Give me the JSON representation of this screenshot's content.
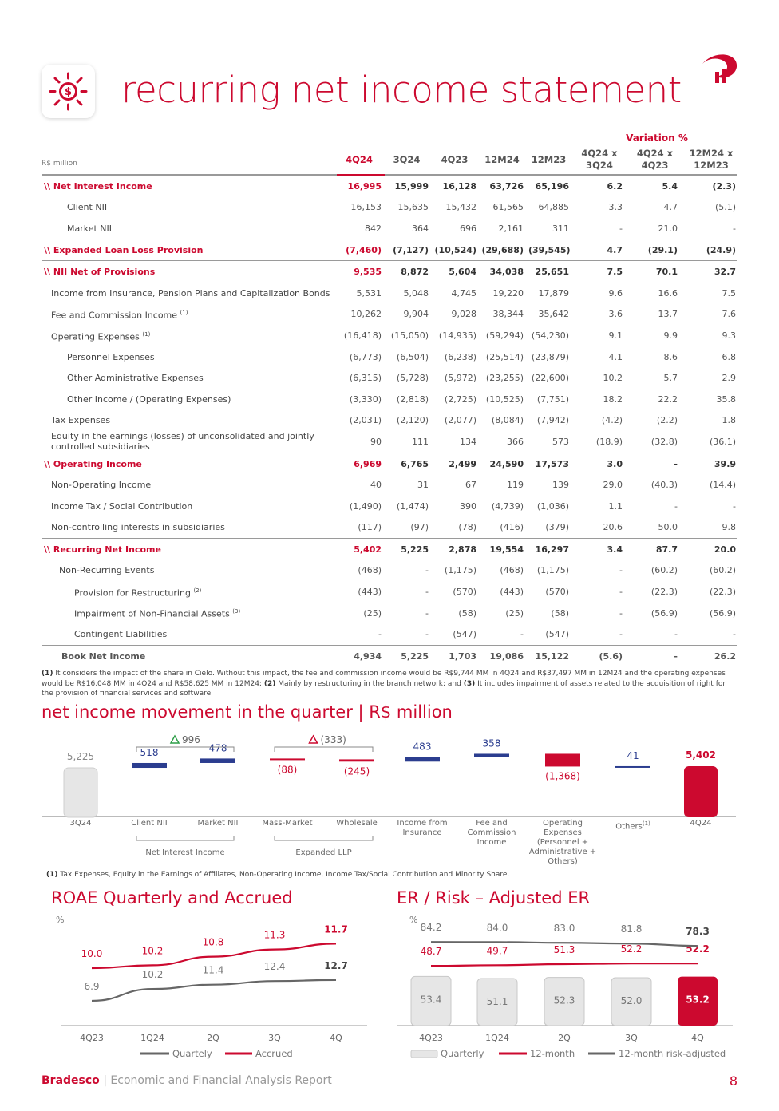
{
  "header": {
    "title": "recurring net income statement"
  },
  "table": {
    "unit": "R$ million",
    "variation_label": "Variation %",
    "columns": [
      "4Q24",
      "3Q24",
      "4Q23",
      "12M24",
      "12M23",
      "4Q24 x\n3Q24",
      "4Q24 x\n4Q23",
      "12M24 x\n12M23"
    ],
    "rows": [
      {
        "label": "\\\\ Net Interest Income",
        "cells": [
          "16,995",
          "15,999",
          "16,128",
          "63,726",
          "65,196",
          "6.2",
          "5.4",
          "(2.3)"
        ]
      },
      {
        "label": "Client NII",
        "cells": [
          "16,153",
          "15,635",
          "15,432",
          "61,565",
          "64,885",
          "3.3",
          "4.7",
          "(5.1)"
        ]
      },
      {
        "label": "Market NII",
        "cells": [
          "842",
          "364",
          "696",
          "2,161",
          "311",
          "-",
          "21.0",
          "-"
        ]
      },
      {
        "label": "\\\\ Expanded Loan Loss Provision",
        "cells": [
          "(7,460)",
          "(7,127)",
          "(10,524)",
          "(29,688)",
          "(39,545)",
          "4.7",
          "(29.1)",
          "(24.9)"
        ]
      },
      {
        "label": "\\\\ NII Net of Provisions",
        "cells": [
          "9,535",
          "8,872",
          "5,604",
          "34,038",
          "25,651",
          "7.5",
          "70.1",
          "32.7"
        ]
      },
      {
        "label": "Income from Insurance, Pension Plans and Capitalization Bonds",
        "cells": [
          "5,531",
          "5,048",
          "4,745",
          "19,220",
          "17,879",
          "9.6",
          "16.6",
          "7.5"
        ]
      },
      {
        "label": "Fee and Commission Income",
        "note": "(1)",
        "cells": [
          "10,262",
          "9,904",
          "9,028",
          "38,344",
          "35,642",
          "3.6",
          "13.7",
          "7.6"
        ]
      },
      {
        "label": "Operating Expenses",
        "note": "(1)",
        "cells": [
          "(16,418)",
          "(15,050)",
          "(14,935)",
          "(59,294)",
          "(54,230)",
          "9.1",
          "9.9",
          "9.3"
        ]
      },
      {
        "label": "Personnel Expenses",
        "cells": [
          "(6,773)",
          "(6,504)",
          "(6,238)",
          "(25,514)",
          "(23,879)",
          "4.1",
          "8.6",
          "6.8"
        ]
      },
      {
        "label": "Other Administrative Expenses",
        "cells": [
          "(6,315)",
          "(5,728)",
          "(5,972)",
          "(23,255)",
          "(22,600)",
          "10.2",
          "5.7",
          "2.9"
        ]
      },
      {
        "label": "Other Income / (Operating Expenses)",
        "cells": [
          "(3,330)",
          "(2,818)",
          "(2,725)",
          "(10,525)",
          "(7,751)",
          "18.2",
          "22.2",
          "35.8"
        ]
      },
      {
        "label": "Tax Expenses",
        "cells": [
          "(2,031)",
          "(2,120)",
          "(2,077)",
          "(8,084)",
          "(7,942)",
          "(4.2)",
          "(2.2)",
          "1.8"
        ]
      },
      {
        "label": "Equity in the earnings (losses) of unconsolidated and jointly controlled subsidiaries",
        "cells": [
          "90",
          "111",
          "134",
          "366",
          "573",
          "(18.9)",
          "(32.8)",
          "(36.1)"
        ]
      },
      {
        "label": "\\\\ Operating Income",
        "cells": [
          "6,969",
          "6,765",
          "2,499",
          "24,590",
          "17,573",
          "3.0",
          "-",
          "39.9"
        ]
      },
      {
        "label": "Non-Operating Income",
        "cells": [
          "40",
          "31",
          "67",
          "119",
          "139",
          "29.0",
          "(40.3)",
          "(14.4)"
        ]
      },
      {
        "label": "Income Tax / Social Contribution",
        "cells": [
          "(1,490)",
          "(1,474)",
          "390",
          "(4,739)",
          "(1,036)",
          "1.1",
          "-",
          "-"
        ]
      },
      {
        "label": "Non-controlling interests in subsidiaries",
        "cells": [
          "(117)",
          "(97)",
          "(78)",
          "(416)",
          "(379)",
          "20.6",
          "50.0",
          "9.8"
        ]
      },
      {
        "label": "\\\\ Recurring Net Income",
        "cells": [
          "5,402",
          "5,225",
          "2,878",
          "19,554",
          "16,297",
          "3.4",
          "87.7",
          "20.0"
        ]
      },
      {
        "label": "Non-Recurring Events",
        "cells": [
          "(468)",
          "-",
          "(1,175)",
          "(468)",
          "(1,175)",
          "-",
          "(60.2)",
          "(60.2)"
        ]
      },
      {
        "label": "Provision for Restructuring",
        "note": "(2)",
        "cells": [
          "(443)",
          "-",
          "(570)",
          "(443)",
          "(570)",
          "-",
          "(22.3)",
          "(22.3)"
        ]
      },
      {
        "label": "Impairment of Non-Financial Assets",
        "note": "(3)",
        "cells": [
          "(25)",
          "-",
          "(58)",
          "(25)",
          "(58)",
          "-",
          "(56.9)",
          "(56.9)"
        ]
      },
      {
        "label": "Contingent Liabilities",
        "cells": [
          "-",
          "-",
          "(547)",
          "-",
          "(547)",
          "-",
          "-",
          "-"
        ]
      },
      {
        "label": "Book Net Income",
        "cells": [
          "4,934",
          "5,225",
          "1,703",
          "19,086",
          "15,122",
          "(5.6)",
          "-",
          "26.2"
        ]
      }
    ]
  },
  "table_notes": [
    {
      "mark": "(1)",
      "text": "It considers the impact of the share in Cielo. Without this impact, the fee and commission income would be R$9,744 MM in 4Q24 and R$37,497 MM in 12M24 and the operating expenses would be R$16,048 MM in 4Q24 and R$58,625 MM in 12M24;"
    },
    {
      "mark": "(2)",
      "text": "Mainly by restructuring in the branch network; and"
    },
    {
      "mark": "(3)",
      "text": "It includes impairment of assets related to the acquisition of right for the provision of financial services and software."
    }
  ],
  "chart_data": [
    {
      "type": "waterfall",
      "title": "net income movement in the quarter | R$ million",
      "categories": [
        "3Q24",
        "Client NII",
        "Market NII",
        "Mass-Market",
        "Wholesale",
        "Income from Insurance",
        "Fee and Commission Income",
        "Operating Expenses (Personnel + Administrative + Others)",
        "Others",
        "4Q24"
      ],
      "category_notes": [
        null,
        null,
        null,
        null,
        null,
        null,
        null,
        null,
        "(1)",
        null
      ],
      "values": [
        5225,
        518,
        478,
        -88,
        -245,
        483,
        358,
        -1368,
        41,
        5402
      ],
      "value_labels": [
        "5,225",
        "518",
        "478",
        "(88)",
        "(245)",
        "483",
        "358",
        "(1,368)",
        "41",
        "5,402"
      ],
      "groups": [
        {
          "label": "Net Interest Income",
          "delta": 996,
          "delta_label": "996"
        },
        {
          "label": "Expanded LLP",
          "delta": -333,
          "delta_label": "(333)"
        }
      ],
      "colors": {
        "start": "#e6e6e6",
        "end": "#cc092f",
        "increase": "#2b3d8f",
        "decrease": "#cc092f",
        "delta_up": "#2e9e48",
        "delta_down": "#cc092f"
      },
      "note": {
        "mark": "(1)",
        "text": "Tax Expenses, Equity in the Earnings of Affiliates, Non-Operating Income, Income Tax/Social Contribution and Minority Share."
      }
    },
    {
      "type": "line",
      "title": "ROAE Quarterly and Accrued",
      "y_label": "%",
      "categories": [
        "4Q23",
        "1Q24",
        "2Q",
        "3Q",
        "4Q"
      ],
      "ylim": [
        0,
        30
      ],
      "y2lim": [
        6,
        13.5
      ],
      "series": [
        {
          "name": "Quartely",
          "color": "#666666",
          "values": [
            6.9,
            10.2,
            11.4,
            12.4,
            12.7
          ],
          "value_labels": [
            "6.9",
            "10.2",
            "11.4",
            "12.4",
            "12.7"
          ]
        },
        {
          "name": "Accrued",
          "color": "#cc092f",
          "axis": "y2",
          "values": [
            10.0,
            10.2,
            10.8,
            11.3,
            11.7
          ],
          "value_labels": [
            "10.0",
            "10.2",
            "10.8",
            "11.3",
            "11.7"
          ]
        }
      ]
    },
    {
      "type": "combo",
      "title": "ER / Risk – Adjusted ER",
      "y_label": "%",
      "categories": [
        "4Q23",
        "1Q24",
        "2Q",
        "3Q",
        "4Q"
      ],
      "ylim": [
        0,
        117
      ],
      "y2lim": [
        -40,
        120
      ],
      "series": [
        {
          "name": "Quarterly",
          "type": "bar",
          "colors": [
            "#e6e6e6",
            "#e6e6e6",
            "#e6e6e6",
            "#e6e6e6",
            "#cc092f"
          ],
          "values": [
            53.4,
            51.1,
            52.3,
            52.0,
            53.2
          ],
          "value_labels": [
            "53.4",
            "51.1",
            "52.3",
            "52.0",
            "53.2"
          ]
        },
        {
          "name": "12-month",
          "type": "line",
          "axis": "y2",
          "color": "#cc092f",
          "values": [
            48.7,
            49.7,
            51.3,
            52.2,
            52.2
          ],
          "value_labels": [
            "48.7",
            "49.7",
            "51.3",
            "52.2",
            "52.2"
          ]
        },
        {
          "name": "12-month risk-adjusted",
          "type": "line",
          "axis": "y2",
          "color": "#666666",
          "values": [
            84.2,
            84.0,
            83.0,
            81.8,
            78.3
          ],
          "value_labels": [
            "84.2",
            "84.0",
            "83.0",
            "81.8",
            "78.3"
          ]
        }
      ]
    }
  ],
  "footer": {
    "brand": "Bradesco",
    "separator": "|",
    "report": "Economic and Financial Analysis Report",
    "page": "8"
  }
}
